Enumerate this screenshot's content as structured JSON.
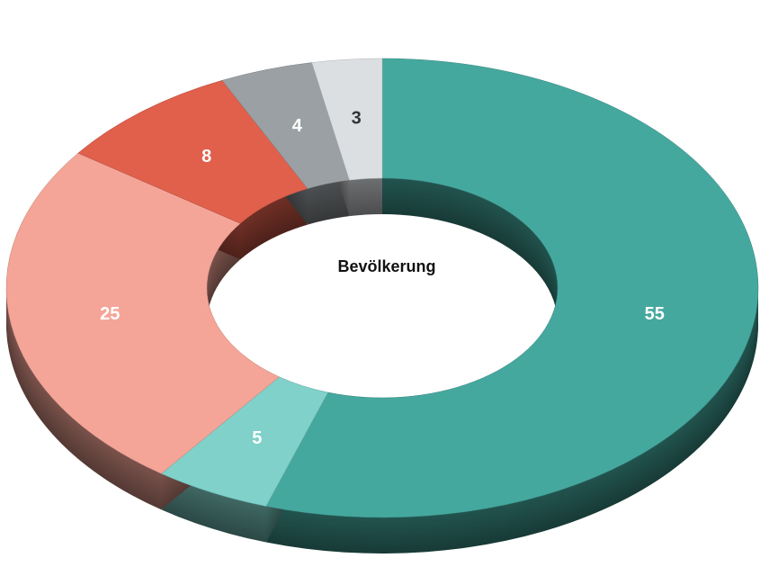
{
  "chart_data": {
    "type": "donut",
    "center_label": "Bevölkerung",
    "values": [
      55,
      5,
      25,
      8,
      4,
      3
    ],
    "colors": [
      "#45a89e",
      "#7fd1c9",
      "#f4a597",
      "#e0604c",
      "#9aa0a4",
      "#dcdfe2"
    ]
  }
}
